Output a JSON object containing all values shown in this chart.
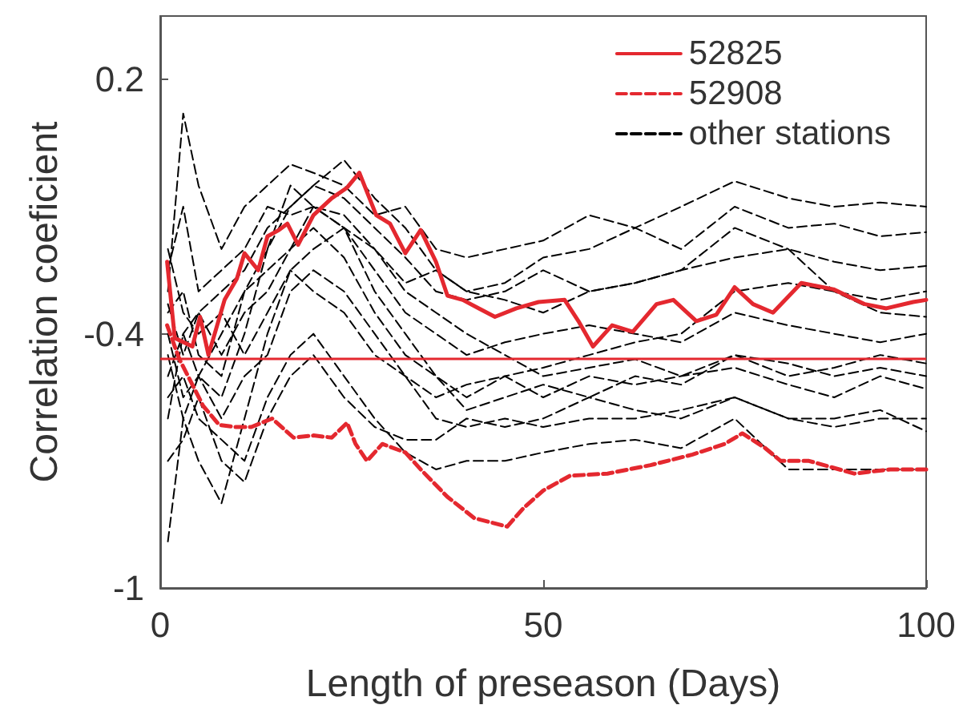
{
  "chart_data": {
    "type": "line",
    "xlabel": "Length of preseason (Days)",
    "ylabel": "Correlation coeficient",
    "xlim": [
      0,
      100
    ],
    "xticks": [
      0,
      50,
      100
    ],
    "ylim": [
      -1,
      0.35
    ],
    "yticks": [
      -1,
      -0.4,
      0.2
    ],
    "legend": "top right",
    "marker": "none",
    "ref_lines": [
      {
        "axis": "y",
        "value": -0.46,
        "color": "#e4282f",
        "line_style": "solid"
      }
    ],
    "series": [
      {
        "name": "52825",
        "color": "#e4282f",
        "line_style": "solid",
        "x": [
          0.9,
          1.9,
          4.2,
          5.2,
          6.3,
          8.4,
          10,
          11,
          12.8,
          14,
          15.5,
          16.6,
          18,
          20,
          22.4,
          24.4,
          26,
          28.2,
          30,
          32,
          34,
          36,
          37.5,
          39.5,
          41.6,
          43.7,
          46.5,
          49.4,
          52.8,
          54.6,
          56.5,
          59,
          61.7,
          64.8,
          67,
          70,
          72.6,
          75,
          77.4,
          80,
          83.7,
          87.9,
          92,
          94.8,
          98.3,
          100
        ],
        "values": [
          -0.23,
          -0.41,
          -0.43,
          -0.36,
          -0.45,
          -0.32,
          -0.27,
          -0.21,
          -0.25,
          -0.17,
          -0.155,
          -0.14,
          -0.19,
          -0.12,
          -0.08,
          -0.055,
          -0.02,
          -0.12,
          -0.14,
          -0.21,
          -0.155,
          -0.23,
          -0.31,
          -0.32,
          -0.34,
          -0.36,
          -0.34,
          -0.325,
          -0.32,
          -0.37,
          -0.43,
          -0.38,
          -0.395,
          -0.33,
          -0.32,
          -0.37,
          -0.355,
          -0.29,
          -0.33,
          -0.35,
          -0.28,
          -0.295,
          -0.33,
          -0.34,
          -0.325,
          -0.32
        ]
      },
      {
        "name": "52908",
        "color": "#e4282f",
        "line_style": "dashed",
        "x": [
          0.9,
          2.5,
          5.6,
          7.7,
          9.8,
          11.9,
          14.6,
          17.4,
          20,
          22.4,
          24.4,
          25.5,
          27,
          29,
          32,
          34,
          37.5,
          41,
          45.3,
          47.5,
          50,
          53.5,
          58.4,
          64,
          69.5,
          73.7,
          76,
          79,
          81,
          84.7,
          90.6,
          95.3,
          100
        ],
        "values": [
          -0.38,
          -0.46,
          -0.57,
          -0.615,
          -0.62,
          -0.62,
          -0.6,
          -0.645,
          -0.64,
          -0.645,
          -0.61,
          -0.66,
          -0.7,
          -0.66,
          -0.68,
          -0.72,
          -0.785,
          -0.835,
          -0.855,
          -0.81,
          -0.77,
          -0.735,
          -0.73,
          -0.71,
          -0.685,
          -0.66,
          -0.635,
          -0.67,
          -0.7,
          -0.7,
          -0.73,
          -0.72,
          -0.72
        ]
      },
      {
        "name": "other stations",
        "color": "#000000",
        "line_style": "dashed",
        "x": [
          1,
          3,
          5,
          8,
          11,
          14,
          17,
          20,
          24,
          28,
          32,
          36,
          40,
          45,
          50,
          56,
          62,
          68,
          75,
          82,
          88,
          94,
          100
        ],
        "values": [
          -0.3,
          0.12,
          -0.05,
          -0.2,
          -0.1,
          -0.05,
          0.0,
          -0.02,
          -0.05,
          -0.12,
          -0.1,
          -0.2,
          -0.22,
          -0.2,
          -0.18,
          -0.12,
          -0.15,
          -0.1,
          -0.04,
          -0.08,
          -0.1,
          -0.09,
          -0.1
        ]
      },
      {
        "color": "#000000",
        "line_style": "dashed",
        "x": [
          1,
          3,
          5,
          8,
          11,
          14,
          17,
          20,
          24,
          28,
          32,
          36,
          40,
          45,
          50,
          56,
          62,
          68,
          75,
          82,
          88,
          94,
          100
        ],
        "values": [
          -0.89,
          -0.6,
          -0.5,
          -0.55,
          -0.4,
          -0.2,
          -0.1,
          -0.05,
          0.01,
          -0.08,
          -0.15,
          -0.25,
          -0.3,
          -0.28,
          -0.22,
          -0.2,
          -0.15,
          -0.2,
          -0.1,
          -0.15,
          -0.14,
          -0.17,
          -0.16
        ]
      },
      {
        "color": "#000000",
        "line_style": "dashed",
        "x": [
          1,
          3,
          5,
          8,
          11,
          14,
          17,
          20,
          24,
          28,
          32,
          36,
          40,
          45,
          50,
          56,
          62,
          68,
          75,
          82,
          88,
          94,
          100
        ],
        "values": [
          -0.45,
          -0.6,
          -0.7,
          -0.8,
          -0.6,
          -0.4,
          -0.25,
          -0.2,
          -0.15,
          -0.3,
          -0.4,
          -0.5,
          -0.55,
          -0.5,
          -0.48,
          -0.45,
          -0.42,
          -0.4,
          -0.3,
          -0.28,
          -0.3,
          -0.32,
          -0.3
        ]
      },
      {
        "color": "#000000",
        "line_style": "dashed",
        "x": [
          1,
          3,
          5,
          8,
          11,
          14,
          17,
          20,
          24,
          28,
          32,
          36,
          40,
          45,
          50,
          56,
          62,
          68,
          75,
          82,
          88,
          94,
          100
        ],
        "values": [
          -0.35,
          -0.3,
          -0.45,
          -0.5,
          -0.3,
          -0.2,
          -0.05,
          -0.1,
          -0.12,
          -0.2,
          -0.3,
          -0.35,
          -0.4,
          -0.45,
          -0.5,
          -0.48,
          -0.46,
          -0.5,
          -0.45,
          -0.47,
          -0.5,
          -0.48,
          -0.5
        ]
      },
      {
        "color": "#000000",
        "line_style": "dashed",
        "x": [
          1,
          3,
          5,
          8,
          11,
          14,
          17,
          20,
          24,
          28,
          32,
          36,
          40,
          45,
          50,
          56,
          62,
          68,
          75,
          82,
          88,
          94,
          100
        ],
        "values": [
          -0.5,
          -0.4,
          -0.35,
          -0.45,
          -0.35,
          -0.3,
          -0.2,
          -0.15,
          -0.22,
          -0.35,
          -0.45,
          -0.5,
          -0.58,
          -0.55,
          -0.52,
          -0.55,
          -0.5,
          -0.52,
          -0.45,
          -0.5,
          -0.48,
          -0.45,
          -0.47
        ]
      },
      {
        "color": "#000000",
        "line_style": "dashed",
        "x": [
          1,
          3,
          5,
          8,
          11,
          14,
          17,
          20,
          24,
          28,
          32,
          36,
          40,
          45,
          50,
          56,
          62,
          68,
          75,
          82,
          88,
          94,
          100
        ],
        "values": [
          -0.4,
          -0.55,
          -0.5,
          -0.6,
          -0.5,
          -0.45,
          -0.3,
          -0.25,
          -0.3,
          -0.4,
          -0.5,
          -0.6,
          -0.62,
          -0.6,
          -0.62,
          -0.6,
          -0.6,
          -0.58,
          -0.55,
          -0.6,
          -0.62,
          -0.6,
          -0.6
        ]
      },
      {
        "color": "#000000",
        "line_style": "dashed",
        "x": [
          1,
          3,
          5,
          8,
          11,
          14,
          17,
          20,
          24,
          28,
          32,
          36,
          40,
          45,
          50,
          56,
          62,
          68,
          75,
          82,
          88,
          94,
          100
        ],
        "values": [
          -0.55,
          -0.5,
          -0.6,
          -0.65,
          -0.7,
          -0.55,
          -0.45,
          -0.4,
          -0.5,
          -0.6,
          -0.68,
          -0.72,
          -0.7,
          -0.7,
          -0.68,
          -0.66,
          -0.65,
          -0.67,
          -0.6,
          -0.72,
          -0.72,
          -0.72,
          -0.72
        ]
      },
      {
        "color": "#000000",
        "line_style": "dashed",
        "x": [
          1,
          3,
          5,
          8,
          11,
          14,
          17,
          20,
          24,
          28,
          32,
          36,
          40,
          45,
          50,
          56,
          62,
          68,
          75,
          82,
          88,
          94,
          100
        ],
        "values": [
          -0.33,
          -0.45,
          -0.35,
          -0.3,
          -0.25,
          -0.15,
          -0.1,
          -0.05,
          -0.08,
          -0.15,
          -0.22,
          -0.3,
          -0.32,
          -0.3,
          -0.25,
          -0.3,
          -0.28,
          -0.25,
          -0.22,
          -0.2,
          -0.23,
          -0.25,
          -0.24
        ]
      },
      {
        "color": "#000000",
        "line_style": "dashed",
        "x": [
          1,
          3,
          5,
          8,
          11,
          14,
          17,
          20,
          24,
          28,
          32,
          36,
          40,
          45,
          50,
          56,
          62,
          68,
          75,
          82,
          88,
          94,
          100
        ],
        "values": [
          -0.6,
          -0.4,
          -0.5,
          -0.4,
          -0.3,
          -0.25,
          -0.2,
          -0.1,
          -0.15,
          -0.25,
          -0.35,
          -0.4,
          -0.45,
          -0.42,
          -0.4,
          -0.38,
          -0.4,
          -0.42,
          -0.35,
          -0.38,
          -0.4,
          -0.42,
          -0.4
        ]
      },
      {
        "color": "#000000",
        "line_style": "dashed",
        "x": [
          1,
          3,
          5,
          8,
          11,
          14,
          17,
          20,
          24,
          28,
          32,
          36,
          40,
          45,
          50,
          56,
          62,
          68,
          75,
          82,
          88,
          94,
          100
        ],
        "values": [
          -0.2,
          -0.35,
          -0.4,
          -0.35,
          -0.45,
          -0.35,
          -0.25,
          -0.3,
          -0.35,
          -0.45,
          -0.5,
          -0.55,
          -0.52,
          -0.5,
          -0.55,
          -0.5,
          -0.52,
          -0.5,
          -0.48,
          -0.52,
          -0.55,
          -0.5,
          -0.53
        ]
      },
      {
        "color": "#000000",
        "line_style": "dashed",
        "x": [
          1,
          3,
          5,
          8,
          11,
          14,
          17,
          20,
          24,
          28,
          32,
          36,
          40,
          45,
          50,
          56,
          62,
          68,
          75,
          82,
          88,
          94,
          100
        ],
        "values": [
          -0.7,
          -0.65,
          -0.55,
          -0.7,
          -0.75,
          -0.6,
          -0.5,
          -0.45,
          -0.55,
          -0.62,
          -0.65,
          -0.65,
          -0.6,
          -0.62,
          -0.6,
          -0.55,
          -0.58,
          -0.6,
          -0.55,
          -0.6,
          -0.6,
          -0.58,
          -0.63
        ]
      },
      {
        "color": "#000000",
        "line_style": "dashed",
        "x": [
          1,
          3,
          5,
          8,
          11,
          14,
          17,
          20,
          24,
          28,
          32,
          36,
          40,
          45,
          50,
          56,
          62,
          68,
          75,
          82,
          88,
          94,
          100
        ],
        "values": [
          -0.25,
          -0.1,
          -0.3,
          -0.25,
          -0.2,
          -0.1,
          -0.12,
          -0.1,
          -0.15,
          -0.2,
          -0.28,
          -0.25,
          -0.3,
          -0.32,
          -0.35,
          -0.3,
          -0.28,
          -0.25,
          -0.15,
          -0.2,
          -0.3,
          -0.35,
          -0.36
        ]
      }
    ]
  }
}
